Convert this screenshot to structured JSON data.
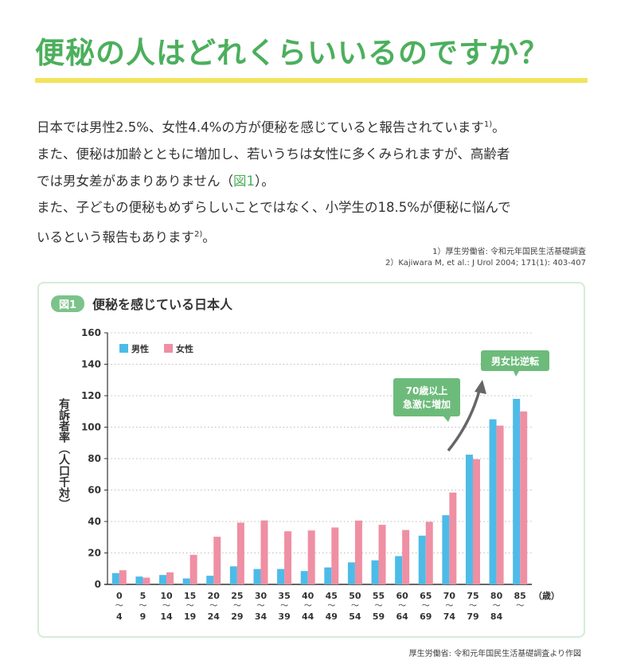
{
  "title": "便秘の人はどれくらいいるのですか？",
  "body": {
    "line1": "日本では男性2.5%、女性4.4%の方が便秘を感じていると報告されています",
    "line1_sup": "1)",
    "line1_end": "。",
    "line2": "また、便秘は加齢とともに増加し、若いうちは女性に多くみられますが、高齢者",
    "line3_a": "では男女差があまりありません（",
    "line3_ref": "図1",
    "line3_b": "）。",
    "line4": "また、子どもの便秘もめずらしいことではなく、小学生の18.5%が便秘に悩んで",
    "line5": "いるという報告もあります",
    "line5_sup": "2)",
    "line5_end": "。"
  },
  "references": [
    "1）厚生労働省: 令和元年国民生活基礎調査",
    "2）Kajiwara M, et al.: J Urol 2004; 171(1): 403-407"
  ],
  "figure": {
    "badge": "図1",
    "title": "便秘を感じている日本人",
    "source": "厚生労働省: 令和元年国民生活基礎調査より作図"
  },
  "chart_data": {
    "type": "bar",
    "ylabel": "有訴者率（人口千対）",
    "xunit": "（歳）",
    "ylim": [
      0,
      160
    ],
    "yticks": [
      0,
      20,
      40,
      60,
      80,
      100,
      120,
      140,
      160
    ],
    "grid": true,
    "legend_position": "top-left",
    "categories": [
      [
        "0",
        "4"
      ],
      [
        "5",
        "9"
      ],
      [
        "10",
        "14"
      ],
      [
        "15",
        "19"
      ],
      [
        "20",
        "24"
      ],
      [
        "25",
        "29"
      ],
      [
        "30",
        "34"
      ],
      [
        "35",
        "39"
      ],
      [
        "40",
        "44"
      ],
      [
        "45",
        "49"
      ],
      [
        "50",
        "54"
      ],
      [
        "55",
        "59"
      ],
      [
        "60",
        "64"
      ],
      [
        "65",
        "69"
      ],
      [
        "70",
        "74"
      ],
      [
        "75",
        "79"
      ],
      [
        "80",
        "84"
      ],
      [
        "85",
        ""
      ]
    ],
    "series": [
      {
        "name": "男性",
        "color": "#4dbbe8",
        "values": [
          7.2,
          5.0,
          6.0,
          3.8,
          5.5,
          11.5,
          9.8,
          9.8,
          8.5,
          10.8,
          14.0,
          15.3,
          18.0,
          31.0,
          44.0,
          82.5,
          105.0,
          118.0
        ]
      },
      {
        "name": "女性",
        "color": "#ef8fa3",
        "values": [
          9.0,
          4.3,
          7.7,
          18.8,
          30.3,
          39.3,
          40.7,
          33.8,
          34.3,
          36.2,
          40.6,
          37.9,
          34.6,
          39.8,
          58.4,
          79.6,
          101.0,
          110.0
        ]
      }
    ],
    "annotations": [
      "70歳以上",
      "急激に増加",
      "男女比逆転"
    ],
    "annotation_color": "#6dbb7a"
  }
}
